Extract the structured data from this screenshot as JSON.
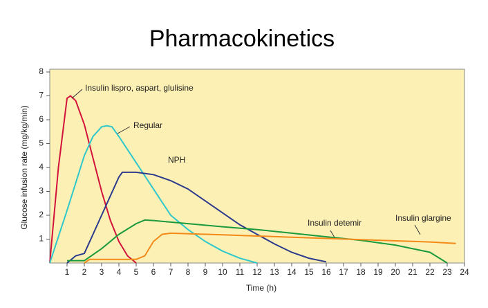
{
  "chart_data": {
    "type": "line",
    "title": "Pharmacokinetics",
    "x_label": "Time (h)",
    "y_label": "Glucose infusion rate (mg/kg/min)",
    "xlim": [
      0,
      24
    ],
    "ylim": [
      0,
      8
    ],
    "xticks": [
      1,
      2,
      3,
      4,
      5,
      6,
      7,
      8,
      9,
      10,
      11,
      12,
      13,
      14,
      15,
      16,
      17,
      18,
      19,
      20,
      21,
      22,
      23,
      24
    ],
    "yticks": [
      1,
      2,
      3,
      4,
      5,
      6,
      7,
      8
    ],
    "grid": false,
    "background": "#fdf0b4",
    "series": [
      {
        "name": "Insulin lispro, aspart, glulisine",
        "color": "#d2123c",
        "x": [
          0,
          0.5,
          1,
          1.2,
          1.5,
          2,
          2.5,
          3,
          3.5,
          4,
          4.5,
          5
        ],
        "values": [
          0,
          4,
          6.9,
          7.0,
          6.8,
          5.8,
          4.4,
          3.0,
          1.8,
          0.9,
          0.3,
          0
        ]
      },
      {
        "name": "Regular",
        "color": "#2ec8cc",
        "x": [
          0,
          1,
          2,
          2.5,
          3,
          3.3,
          3.6,
          4,
          5,
          6,
          7,
          8,
          9,
          10,
          11,
          12
        ],
        "values": [
          0,
          2.2,
          4.5,
          5.3,
          5.7,
          5.75,
          5.7,
          5.3,
          4.2,
          3.1,
          2.0,
          1.4,
          0.9,
          0.5,
          0.2,
          0
        ]
      },
      {
        "name": "NPH",
        "color": "#2b3a8c",
        "x": [
          1,
          1.5,
          2,
          3,
          4,
          4.2,
          5,
          6,
          7,
          8,
          9,
          10,
          11,
          12,
          13,
          14,
          15,
          16
        ],
        "values": [
          0,
          0.3,
          0.4,
          2.0,
          3.6,
          3.8,
          3.8,
          3.7,
          3.45,
          3.1,
          2.6,
          2.1,
          1.6,
          1.2,
          0.8,
          0.45,
          0.2,
          0.05
        ]
      },
      {
        "name": "Insulin detemir",
        "color": "#1a9a3c",
        "x": [
          1,
          2,
          3,
          4,
          5,
          5.5,
          6,
          8,
          10,
          12,
          14,
          16,
          18,
          20,
          22,
          23
        ],
        "values": [
          0.1,
          0.1,
          0.6,
          1.2,
          1.65,
          1.8,
          1.78,
          1.65,
          1.52,
          1.4,
          1.25,
          1.1,
          0.95,
          0.75,
          0.45,
          0
        ]
      },
      {
        "name": "Insulin glargine",
        "color": "#f28a1a",
        "x": [
          2,
          2.3,
          3,
          4,
          5,
          5.5,
          6,
          6.5,
          7,
          10,
          14,
          18,
          22,
          23.5
        ],
        "values": [
          0,
          0.15,
          0.15,
          0.15,
          0.15,
          0.3,
          0.9,
          1.2,
          1.25,
          1.18,
          1.08,
          0.98,
          0.88,
          0.82
        ]
      }
    ]
  }
}
